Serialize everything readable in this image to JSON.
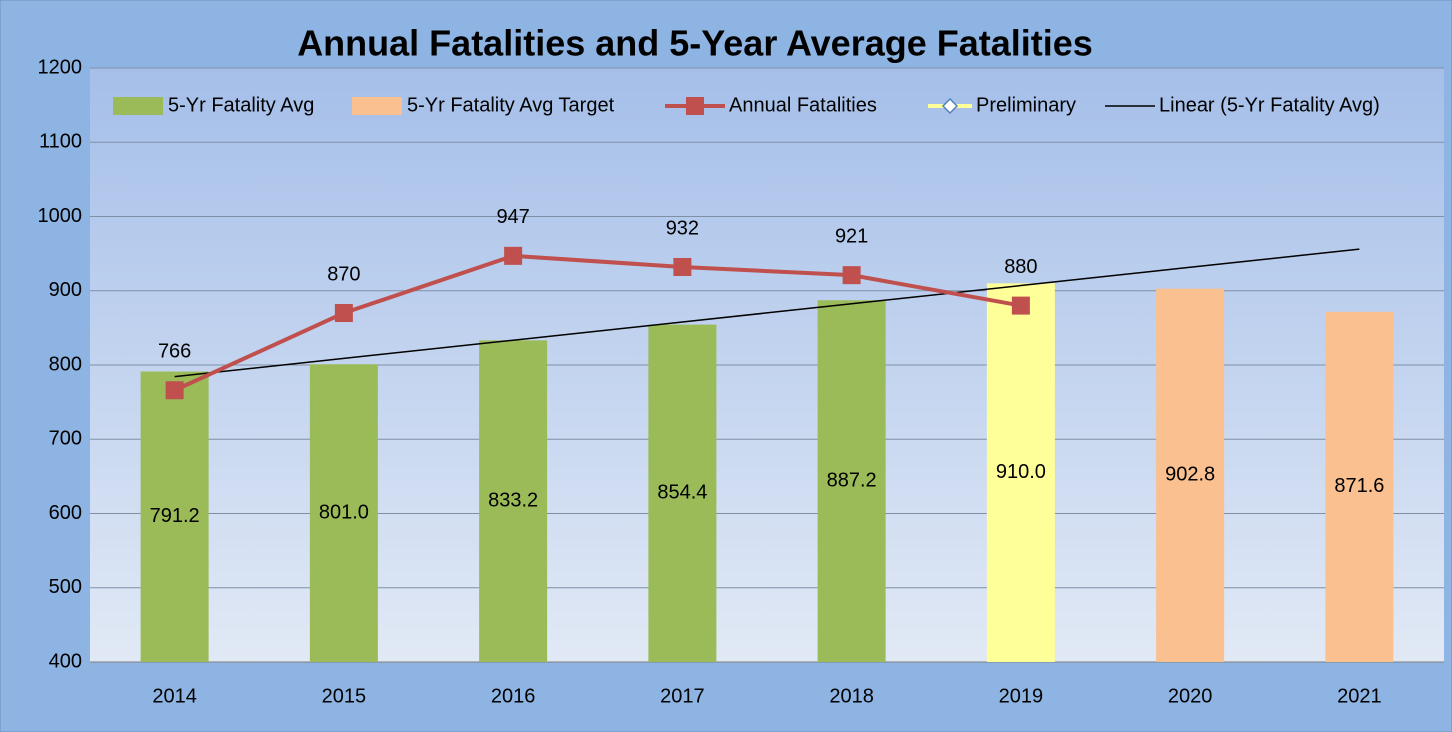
{
  "chart_data": {
    "type": "bar",
    "title": "Annual Fatalities and 5-Year Average Fatalities",
    "categories": [
      "2014",
      "2015",
      "2016",
      "2017",
      "2018",
      "2019",
      "2020",
      "2021"
    ],
    "series": [
      {
        "name": "5-Yr Fatality Avg",
        "type": "bar",
        "color": "#9bbb59",
        "values": [
          791.2,
          801.0,
          833.2,
          854.4,
          887.2,
          null,
          null,
          null
        ],
        "value_labels": [
          "791.2",
          "801.0",
          "833.2",
          "854.4",
          "887.2",
          null,
          null,
          null
        ]
      },
      {
        "name": "5-Yr Fatality Avg Target",
        "type": "bar",
        "color": "#fac090",
        "values": [
          null,
          null,
          null,
          null,
          null,
          null,
          902.8,
          871.6
        ],
        "value_labels": [
          null,
          null,
          null,
          null,
          null,
          null,
          "902.8",
          "871.6"
        ]
      },
      {
        "name": "Annual Fatalities",
        "type": "line",
        "color": "#c0504d",
        "values": [
          766,
          870,
          947,
          932,
          921,
          880,
          null,
          null
        ]
      },
      {
        "name": "Preliminary",
        "type": "bar",
        "color": "#ffff99",
        "marker": "diamond",
        "values": [
          null,
          null,
          null,
          null,
          null,
          910.0,
          null,
          null
        ],
        "value_labels": [
          null,
          null,
          null,
          null,
          null,
          "910.0",
          null,
          null
        ]
      },
      {
        "name": "Linear (5-Yr Fatality Avg)",
        "type": "trend",
        "color": "#000000",
        "values": [
          784.3,
          808.9,
          833.4,
          857.9,
          882.5,
          907.0,
          931.6,
          956.1
        ]
      }
    ],
    "ylim": [
      400,
      1200
    ],
    "yticks": [
      400,
      500,
      600,
      700,
      800,
      900,
      1000,
      1100,
      1200
    ],
    "grid": true,
    "legend": "top"
  }
}
